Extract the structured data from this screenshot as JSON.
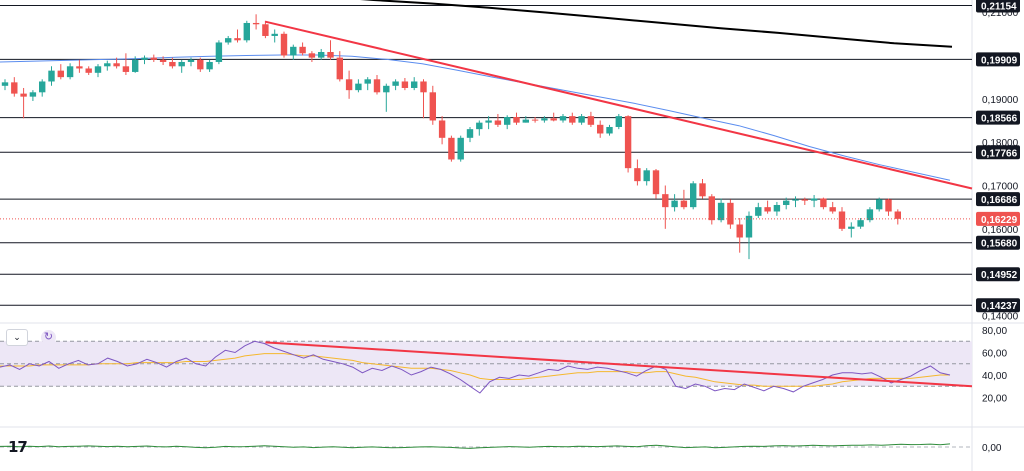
{
  "chart_data": [
    {
      "type": "candlestick",
      "symbol_pane": "price",
      "y_axis": {
        "range": [
          0.1385,
          0.2128
        ],
        "tick_labels": [
          "0,21000",
          "0,20000",
          "0,19000",
          "0,18000",
          "0,17000",
          "0,16000",
          "0,14000"
        ],
        "tick_values": [
          0.21,
          0.2,
          0.19,
          0.18,
          0.17,
          0.16,
          0.14
        ]
      },
      "levels": [
        {
          "label": "0,21154",
          "value": 0.21154
        },
        {
          "label": "0,19909",
          "value": 0.19909
        },
        {
          "label": "0,18566",
          "value": 0.18566
        },
        {
          "label": "0,17766",
          "value": 0.17766
        },
        {
          "label": "0,16686",
          "value": 0.16686
        },
        {
          "label": "0,15680",
          "value": 0.1568
        },
        {
          "label": "0,14952",
          "value": 0.14952
        },
        {
          "label": "0,14237",
          "value": 0.14237
        }
      ],
      "current_price": {
        "label": "0,16229",
        "value": 0.16229
      },
      "colors": {
        "up": "#26a69a",
        "down": "#ef5350",
        "level": "#131722",
        "trendline": "#f23645",
        "ma_short": "#5b8def",
        "ma_long": "#000000"
      },
      "candles": [
        [
          0.193,
          0.1945,
          0.192,
          0.1938
        ],
        [
          0.1938,
          0.195,
          0.1905,
          0.1912
        ],
        [
          0.1912,
          0.1925,
          0.1855,
          0.1905
        ],
        [
          0.1905,
          0.192,
          0.1895,
          0.1915
        ],
        [
          0.1915,
          0.1945,
          0.1905,
          0.194
        ],
        [
          0.194,
          0.1975,
          0.193,
          0.1965
        ],
        [
          0.1965,
          0.198,
          0.1945,
          0.195
        ],
        [
          0.195,
          0.1982,
          0.1945,
          0.1975
        ],
        [
          0.1975,
          0.199,
          0.196,
          0.197
        ],
        [
          0.197,
          0.1975,
          0.1955,
          0.196
        ],
        [
          0.196,
          0.198,
          0.195,
          0.1975
        ],
        [
          0.1975,
          0.1988,
          0.1965,
          0.1982
        ],
        [
          0.1982,
          0.1995,
          0.197,
          0.1975
        ],
        [
          0.1975,
          0.2005,
          0.1955,
          0.1962
        ],
        [
          0.1962,
          0.1998,
          0.196,
          0.199
        ],
        [
          0.199,
          0.2,
          0.198,
          0.1995
        ],
        [
          0.1995,
          0.2002,
          0.1985,
          0.199
        ],
        [
          0.199,
          0.1998,
          0.1978,
          0.1985
        ],
        [
          0.1985,
          0.1995,
          0.197,
          0.1975
        ],
        [
          0.1975,
          0.199,
          0.196,
          0.1985
        ],
        [
          0.1985,
          0.1995,
          0.1975,
          0.199
        ],
        [
          0.199,
          0.1995,
          0.1962,
          0.1968
        ],
        [
          0.1968,
          0.199,
          0.1962,
          0.1985
        ],
        [
          0.1985,
          0.2035,
          0.198,
          0.203
        ],
        [
          0.203,
          0.2045,
          0.2025,
          0.204
        ],
        [
          0.204,
          0.206,
          0.203,
          0.2035
        ],
        [
          0.2035,
          0.208,
          0.203,
          0.2075
        ],
        [
          0.2075,
          0.2095,
          0.206,
          0.2072
        ],
        [
          0.2072,
          0.208,
          0.204,
          0.2045
        ],
        [
          0.2045,
          0.206,
          0.203,
          0.205
        ],
        [
          0.205,
          0.2055,
          0.1995,
          0.2
        ],
        [
          0.2,
          0.2025,
          0.199,
          0.202
        ],
        [
          0.202,
          0.203,
          0.2,
          0.2005
        ],
        [
          0.2005,
          0.201,
          0.1985,
          0.1995
        ],
        [
          0.1995,
          0.2015,
          0.199,
          0.2008
        ],
        [
          0.2008,
          0.2035,
          0.199,
          0.1995
        ],
        [
          0.1995,
          0.201,
          0.194,
          0.1945
        ],
        [
          0.1945,
          0.1965,
          0.19,
          0.192
        ],
        [
          0.192,
          0.1945,
          0.1915,
          0.1935
        ],
        [
          0.1935,
          0.195,
          0.192,
          0.1945
        ],
        [
          0.1945,
          0.1955,
          0.191,
          0.1915
        ],
        [
          0.1915,
          0.1935,
          0.187,
          0.193
        ],
        [
          0.193,
          0.1945,
          0.192,
          0.194
        ],
        [
          0.194,
          0.1948,
          0.192,
          0.1925
        ],
        [
          0.1925,
          0.195,
          0.192,
          0.194
        ],
        [
          0.194,
          0.1945,
          0.1855,
          0.1915
        ],
        [
          0.1915,
          0.193,
          0.184,
          0.185
        ],
        [
          0.185,
          0.186,
          0.1795,
          0.181
        ],
        [
          0.181,
          0.1815,
          0.1755,
          0.176
        ],
        [
          0.176,
          0.1815,
          0.1755,
          0.181
        ],
        [
          0.181,
          0.1835,
          0.18,
          0.183
        ],
        [
          0.183,
          0.185,
          0.1815,
          0.1845
        ],
        [
          0.1845,
          0.186,
          0.183,
          0.185
        ],
        [
          0.185,
          0.1865,
          0.1835,
          0.184
        ],
        [
          0.184,
          0.1862,
          0.183,
          0.1858
        ],
        [
          0.1858,
          0.1868,
          0.184,
          0.1845
        ],
        [
          0.1845,
          0.186,
          0.1845,
          0.1852
        ],
        [
          0.1852,
          0.1858,
          0.1845,
          0.185
        ],
        [
          0.185,
          0.186,
          0.1845,
          0.1855
        ],
        [
          0.1855,
          0.1868,
          0.1848,
          0.185
        ],
        [
          0.185,
          0.1865,
          0.1845,
          0.186
        ],
        [
          0.186,
          0.1868,
          0.184,
          0.1845
        ],
        [
          0.1845,
          0.1865,
          0.184,
          0.186
        ],
        [
          0.186,
          0.187,
          0.1835,
          0.184
        ],
        [
          0.184,
          0.185,
          0.181,
          0.182
        ],
        [
          0.182,
          0.184,
          0.1815,
          0.1835
        ],
        [
          0.1835,
          0.1865,
          0.183,
          0.186
        ],
        [
          0.186,
          0.1862,
          0.173,
          0.174
        ],
        [
          0.174,
          0.176,
          0.17,
          0.171
        ],
        [
          0.171,
          0.174,
          0.17,
          0.1735
        ],
        [
          0.1735,
          0.1738,
          0.167,
          0.168
        ],
        [
          0.168,
          0.17,
          0.16,
          0.165
        ],
        [
          0.165,
          0.168,
          0.164,
          0.1665
        ],
        [
          0.1665,
          0.169,
          0.1645,
          0.165
        ],
        [
          0.165,
          0.171,
          0.1645,
          0.1705
        ],
        [
          0.1705,
          0.1715,
          0.167,
          0.1675
        ],
        [
          0.1675,
          0.168,
          0.161,
          0.162
        ],
        [
          0.162,
          0.167,
          0.1615,
          0.166
        ],
        [
          0.166,
          0.1668,
          0.16,
          0.161
        ],
        [
          0.161,
          0.1625,
          0.1545,
          0.158
        ],
        [
          0.158,
          0.164,
          0.153,
          0.163
        ],
        [
          0.163,
          0.166,
          0.1625,
          0.165
        ],
        [
          0.165,
          0.1665,
          0.1635,
          0.164
        ],
        [
          0.164,
          0.1662,
          0.163,
          0.1655
        ],
        [
          0.1655,
          0.1672,
          0.1645,
          0.1665
        ],
        [
          0.1665,
          0.1675,
          0.165,
          0.1668
        ],
        [
          0.1668,
          0.1672,
          0.1655,
          0.1665
        ],
        [
          0.1665,
          0.1678,
          0.165,
          0.167
        ],
        [
          0.167,
          0.1672,
          0.1645,
          0.165
        ],
        [
          0.165,
          0.1662,
          0.1635,
          0.164
        ],
        [
          0.164,
          0.165,
          0.1595,
          0.16
        ],
        [
          0.16,
          0.1615,
          0.158,
          0.1605
        ],
        [
          0.1605,
          0.1625,
          0.16,
          0.162
        ],
        [
          0.162,
          0.165,
          0.1615,
          0.1645
        ],
        [
          0.1645,
          0.1672,
          0.164,
          0.1668
        ],
        [
          0.1668,
          0.167,
          0.163,
          0.164
        ],
        [
          0.164,
          0.1645,
          0.161,
          0.1623
        ]
      ],
      "trendline": {
        "from": [
          28,
          0.2078
        ],
        "to": [
          100,
          0.1693
        ]
      },
      "ma_short": [
        0.1985,
        0.1987,
        0.1989,
        0.1991,
        0.1993,
        0.1996,
        0.1998,
        0.2,
        0.2001,
        0.2001,
        0.1998,
        0.1991,
        0.1981,
        0.1966,
        0.195,
        0.1935,
        0.192,
        0.1905,
        0.189,
        0.1873,
        0.1855,
        0.1838,
        0.1815,
        0.179,
        0.1768,
        0.1748,
        0.173,
        0.1712
      ],
      "ma_long": [
        0.2165,
        0.2151,
        0.2138,
        0.2128,
        0.212,
        0.211,
        0.2099,
        0.2087,
        0.2075,
        0.2063,
        0.2052,
        0.204,
        0.2028,
        0.202
      ]
    },
    {
      "type": "line",
      "symbol_pane": "oscillator",
      "y_axis": {
        "range": [
          0,
          80
        ],
        "tick_labels": [
          "80,00",
          "60,00",
          "40,00",
          "20,00"
        ],
        "tick_values": [
          80,
          60,
          40,
          20
        ]
      },
      "band": [
        30,
        70
      ],
      "midline": 50,
      "colors": {
        "rsi": "#7e57c2",
        "signal": "#f5b82e",
        "trendline": "#f23645",
        "band": "#ede7f6"
      },
      "rsi": [
        47,
        49,
        45,
        50,
        48,
        52,
        46,
        50,
        53,
        49,
        50,
        55,
        52,
        48,
        50,
        54,
        51,
        47,
        52,
        55,
        50,
        48,
        56,
        62,
        60,
        66,
        70,
        68,
        64,
        61,
        58,
        55,
        58,
        54,
        52,
        50,
        47,
        42,
        46,
        44,
        48,
        45,
        40,
        43,
        47,
        45,
        41,
        36,
        30,
        24,
        34,
        38,
        37,
        40,
        39,
        42,
        45,
        44,
        48,
        46,
        45,
        47,
        46,
        44,
        42,
        39,
        44,
        48,
        45,
        30,
        28,
        32,
        30,
        26,
        28,
        27,
        32,
        29,
        26,
        30,
        28,
        25,
        30,
        33,
        36,
        40,
        42,
        42,
        41,
        42,
        38,
        33,
        36,
        39,
        44,
        48,
        42,
        40
      ],
      "signal": [
        48,
        48,
        48,
        48,
        49,
        49,
        49,
        49,
        49,
        49,
        50,
        50,
        50,
        50,
        51,
        51,
        51,
        51,
        51,
        52,
        52,
        52,
        53,
        54,
        55,
        57,
        58,
        59,
        59,
        59,
        58,
        57,
        57,
        56,
        55,
        54,
        53,
        51,
        50,
        49,
        48,
        47,
        46,
        46,
        46,
        45,
        44,
        42,
        40,
        37,
        36,
        36,
        36,
        36,
        37,
        38,
        39,
        40,
        41,
        42,
        42,
        43,
        43,
        43,
        43,
        42,
        42,
        43,
        43,
        41,
        39,
        38,
        36,
        34,
        33,
        32,
        31,
        31,
        30,
        30,
        30,
        30,
        30,
        30,
        31,
        32,
        34,
        35,
        36,
        37,
        37,
        37,
        37,
        37,
        38,
        39,
        40,
        40
      ],
      "trendline": {
        "from": [
          28,
          69
        ],
        "to": [
          100,
          30
        ]
      }
    },
    {
      "type": "line",
      "symbol_pane": "indicator",
      "y_axis": {
        "tick_labels": [
          "0,00"
        ],
        "tick_values": [
          0
        ]
      },
      "colors": {
        "line": "#2e8b3a"
      },
      "values": [
        0.4,
        0.6,
        0.2,
        0.5,
        0.3,
        0.7,
        0.2,
        0.4,
        0.6,
        0.8,
        0.5,
        0.3,
        0.6,
        0.2,
        0.4,
        0.7,
        0.3,
        0.1,
        0.5,
        0.2,
        -0.3,
        -0.6,
        -0.2,
        0.4,
        0.2,
        0.3,
        0.6,
        0.9,
        0.5,
        0.2,
        -0.2,
        0.1,
        -0.4,
        -0.1,
        0.2,
        -0.2,
        -0.5,
        -0.2,
        0.1,
        -0.3,
        -0.6,
        -0.4,
        -0.2,
        0.1,
        0.2,
        -0.1,
        -0.3,
        -0.7,
        -1.0,
        -0.6,
        -0.3,
        0.0,
        0.3,
        0.1,
        -0.2,
        0.2,
        0.4,
        0.3,
        0.2,
        0.5,
        0.4,
        0.3,
        0.5,
        0.8,
        0.4,
        0.2,
        0.9,
        1.3,
        0.7,
        0.1,
        -0.4,
        -0.2,
        0.1,
        -0.5,
        -0.3,
        0.1,
        0.4,
        0.6,
        0.4,
        0.8,
        1.0,
        0.7,
        0.9,
        1.2,
        1.0,
        0.8,
        1.1,
        1.3,
        1.2,
        1.5,
        1.3,
        1.6,
        1.9,
        1.7,
        1.8,
        2.1,
        1.6,
        2.2
      ]
    }
  ],
  "ui": {
    "collapse_icon": "chevron-down-icon",
    "refresh_icon": "refresh-icon",
    "logo_text": "17"
  }
}
